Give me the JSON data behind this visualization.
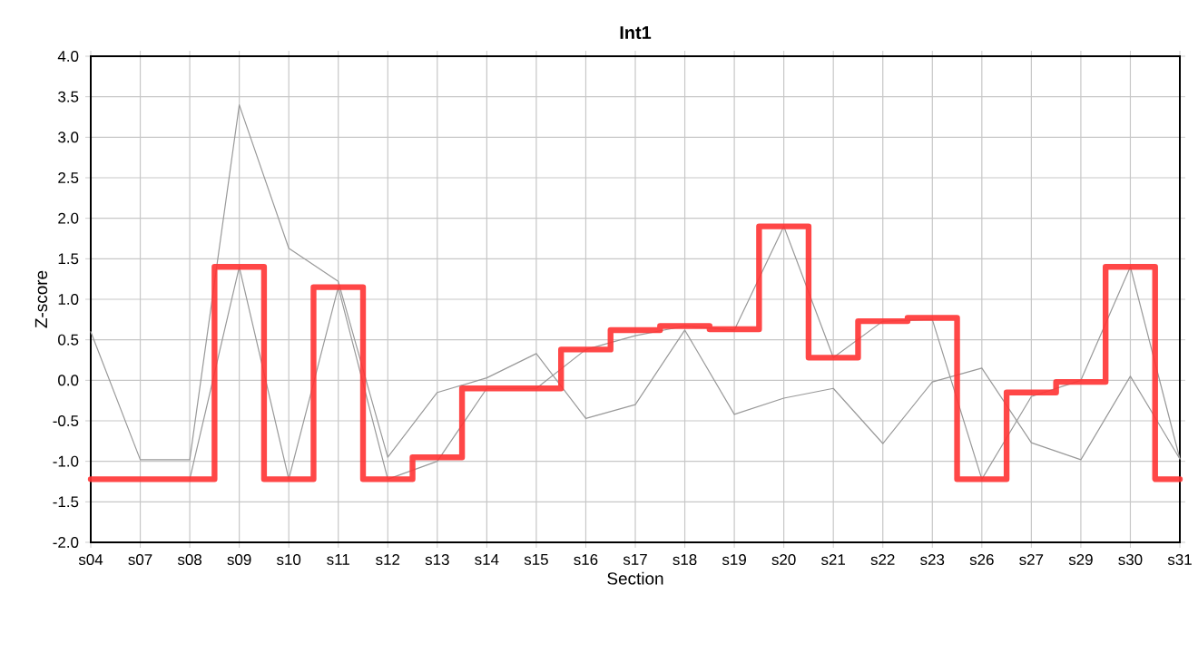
{
  "chart_data": {
    "type": "line",
    "title": "Int1",
    "xlabel": "Section",
    "ylabel": "Z-score",
    "categories": [
      "s04",
      "s07",
      "s08",
      "s09",
      "s10",
      "s11",
      "s12",
      "s13",
      "s14",
      "s15",
      "s16",
      "s17",
      "s18",
      "s19",
      "s20",
      "s21",
      "s22",
      "s23",
      "s26",
      "s27",
      "s29",
      "s30",
      "s31"
    ],
    "series": [
      {
        "color": "#999999",
        "values": [
          0.6,
          -0.98,
          -0.98,
          3.4,
          1.63,
          1.22,
          -0.95,
          -0.15,
          0.03,
          0.33,
          -0.47,
          -0.3,
          0.62,
          -0.42,
          -0.22,
          -0.1,
          -0.78,
          -0.02,
          0.15,
          -0.77,
          -0.98,
          0.05,
          -0.97
        ]
      },
      {
        "color": "#999999",
        "values": [
          null,
          null,
          -1.22,
          1.4,
          -1.22,
          1.15,
          -1.22,
          -1.0,
          -0.1,
          -0.1,
          0.38,
          0.55,
          0.67,
          0.62,
          1.9,
          0.28,
          0.73,
          0.75,
          -1.22,
          -0.2,
          0.0,
          1.4,
          -0.97
        ]
      },
      {
        "type": "step",
        "color": "#ff3333",
        "values": [
          -1.22,
          -1.22,
          -1.22,
          1.4,
          -1.22,
          1.15,
          -1.22,
          -0.95,
          -0.1,
          -0.1,
          0.38,
          0.62,
          0.67,
          0.63,
          1.9,
          0.28,
          0.73,
          0.77,
          -1.22,
          -0.15,
          -0.02,
          1.4,
          -1.22
        ]
      }
    ],
    "ylim": [
      -2.0,
      4.0
    ],
    "yticks": [
      {
        "value": -2,
        "label": "-2.0"
      },
      {
        "value": -1.5,
        "label": "-1.5"
      },
      {
        "value": -1,
        "label": "-1.0"
      },
      {
        "value": -0.5,
        "label": "-0.5"
      },
      {
        "value": 0,
        "label": "0.0"
      },
      {
        "value": 0.5,
        "label": "0.5"
      },
      {
        "value": 1,
        "label": "1.0"
      },
      {
        "value": 1.5,
        "label": "1.5"
      },
      {
        "value": 2,
        "label": "2.0"
      },
      {
        "value": 2.5,
        "label": "2.5"
      },
      {
        "value": 3,
        "label": "3.0"
      },
      {
        "value": 3.5,
        "label": "3.5"
      },
      {
        "value": 4,
        "label": "4.0"
      }
    ],
    "grid": true,
    "marker": "none",
    "line_style": "solid"
  }
}
